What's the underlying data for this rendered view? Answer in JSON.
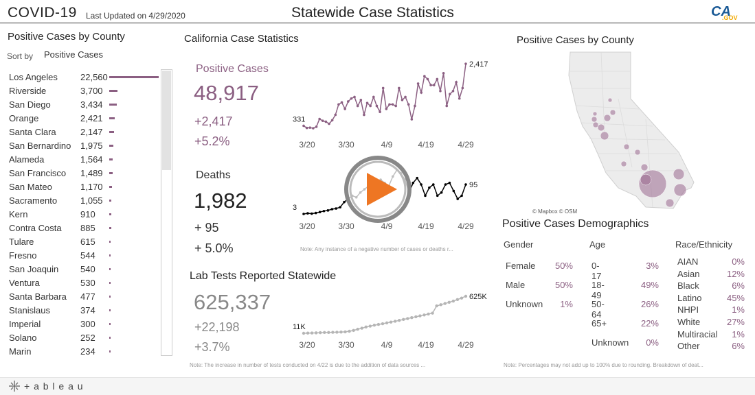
{
  "header": {
    "app_title": "COVID-19",
    "last_updated": "Last Updated on 4/29/2020",
    "dashboard_title": "Statewide Case Statistics",
    "logo_text": "CA.GOV"
  },
  "county_panel": {
    "title": "Positive Cases by County",
    "sort_label": "Sort by",
    "sort_value": "Positive Cases",
    "counties": [
      {
        "name": "Los Angeles",
        "value": "22,560",
        "cases": 22560
      },
      {
        "name": "Riverside",
        "value": "3,700",
        "cases": 3700
      },
      {
        "name": "San Diego",
        "value": "3,434",
        "cases": 3434
      },
      {
        "name": "Orange",
        "value": "2,421",
        "cases": 2421
      },
      {
        "name": "Santa Clara",
        "value": "2,147",
        "cases": 2147
      },
      {
        "name": "San Bernardino",
        "value": "1,975",
        "cases": 1975
      },
      {
        "name": "Alameda",
        "value": "1,564",
        "cases": 1564
      },
      {
        "name": "San Francisco",
        "value": "1,489",
        "cases": 1489
      },
      {
        "name": "San Mateo",
        "value": "1,170",
        "cases": 1170
      },
      {
        "name": "Sacramento",
        "value": "1,055",
        "cases": 1055
      },
      {
        "name": "Kern",
        "value": "910",
        "cases": 910
      },
      {
        "name": "Contra Costa",
        "value": "885",
        "cases": 885
      },
      {
        "name": "Tulare",
        "value": "615",
        "cases": 615
      },
      {
        "name": "Fresno",
        "value": "544",
        "cases": 544
      },
      {
        "name": "San Joaquin",
        "value": "540",
        "cases": 540
      },
      {
        "name": "Ventura",
        "value": "530",
        "cases": 530
      },
      {
        "name": "Santa Barbara",
        "value": "477",
        "cases": 477
      },
      {
        "name": "Stanislaus",
        "value": "374",
        "cases": 374
      },
      {
        "name": "Imperial",
        "value": "300",
        "cases": 300
      },
      {
        "name": "Solano",
        "value": "252",
        "cases": 252
      },
      {
        "name": "Marin",
        "value": "234",
        "cases": 234
      }
    ]
  },
  "stats": {
    "title": "California Case Statistics",
    "positive": {
      "label": "Positive Cases",
      "total": "48,917",
      "change": "+2,417",
      "pct": "+5.2%"
    },
    "deaths": {
      "label": "Deaths",
      "total": "1,982",
      "change": "+ 95",
      "pct": "+ 5.0%"
    },
    "note": "Note: Any instance of a negative number of cases or deaths r..."
  },
  "lab": {
    "title": "Lab Tests Reported Statewide",
    "total": "625,337",
    "change": "+22,198",
    "pct": "+3.7%",
    "note": "Note: The increase in number of tests conducted on 4/22 is due to the addition of data sources ..."
  },
  "map_panel": {
    "title": "Positive Cases by County",
    "attribution": "© Mapbox © OSM"
  },
  "demographics": {
    "title": "Positive Cases Demographics",
    "gender": {
      "header": "Gender",
      "rows": [
        {
          "label": "Female",
          "pct": "50%"
        },
        {
          "label": "Male",
          "pct": "50%"
        },
        {
          "label": "Unknown",
          "pct": "1%"
        }
      ]
    },
    "age": {
      "header": "Age",
      "rows": [
        {
          "label": "0-17",
          "pct": "3%"
        },
        {
          "label": "18-49",
          "pct": "49%"
        },
        {
          "label": "50-64",
          "pct": "26%"
        },
        {
          "label": "65+",
          "pct": "22%"
        },
        {
          "label": "Unknown",
          "pct": "0%"
        }
      ]
    },
    "race": {
      "header": "Race/Ethnicity",
      "rows": [
        {
          "label": "AIAN",
          "pct": "0%"
        },
        {
          "label": "Asian",
          "pct": "12%"
        },
        {
          "label": "Black",
          "pct": "6%"
        },
        {
          "label": "Latino",
          "pct": "45%"
        },
        {
          "label": "NHPI",
          "pct": "1%"
        },
        {
          "label": "White",
          "pct": "27%"
        },
        {
          "label": "Multiracial",
          "pct": "1%"
        },
        {
          "label": "Other",
          "pct": "6%"
        }
      ]
    },
    "note": "Note: Percentages may not add up to 100% due to rounding. Breakdown of deat..."
  },
  "footer": {
    "brand": "+ a b l e a u"
  },
  "colors": {
    "accent": "#8b5f82",
    "dark": "#333333",
    "grey": "#999999"
  },
  "chart_data": [
    {
      "type": "line",
      "name": "positive-cases-trend",
      "x_ticks": [
        "3/20",
        "3/30",
        "4/9",
        "4/19",
        "4/29"
      ],
      "start_label": "331",
      "end_label": "2,417",
      "values": [
        331,
        260,
        270,
        250,
        300,
        560,
        500,
        470,
        400,
        520,
        700,
        1050,
        1120,
        900,
        1150,
        1250,
        1300,
        1000,
        1200,
        700,
        1100,
        1000,
        1300,
        1000,
        800,
        1600,
        900,
        1050,
        1050,
        1000,
        1600,
        1200,
        1300,
        1050,
        550,
        1000,
        1750,
        1450,
        2000,
        1900,
        1700,
        1700,
        1900,
        1500,
        2100,
        1000,
        1400,
        1500,
        1800,
        1250,
        1600,
        2417
      ],
      "color": "#8b5f82"
    },
    {
      "type": "line",
      "name": "deaths-trend",
      "x_ticks": [
        "3/20",
        "3/30",
        "4/9",
        "4/19",
        "4/29"
      ],
      "start_label": "3",
      "end_label": "95",
      "values": [
        3,
        5,
        4,
        6,
        9,
        12,
        14,
        18,
        20,
        24,
        40,
        50,
        60,
        55,
        70,
        80,
        90,
        100,
        95,
        110,
        100,
        90,
        120,
        140,
        130,
        110,
        70,
        100,
        115,
        95,
        60,
        85,
        95,
        60,
        70,
        95,
        100,
        75,
        50,
        60,
        95
      ],
      "color": "#000000"
    },
    {
      "type": "line",
      "name": "lab-tests-trend",
      "x_ticks": [
        "3/20",
        "3/30",
        "4/9",
        "4/19",
        "4/29"
      ],
      "start_label": "11K",
      "end_label": "625K",
      "values": [
        11,
        14,
        16,
        18,
        21,
        24,
        25,
        27,
        29,
        31,
        35,
        45,
        58,
        78,
        95,
        115,
        130,
        145,
        158,
        170,
        183,
        197,
        210,
        225,
        240,
        255,
        270,
        285,
        300,
        315,
        330,
        345,
        465,
        485,
        505,
        525,
        545,
        570,
        595,
        625
      ],
      "color": "#b5b5b5"
    }
  ]
}
